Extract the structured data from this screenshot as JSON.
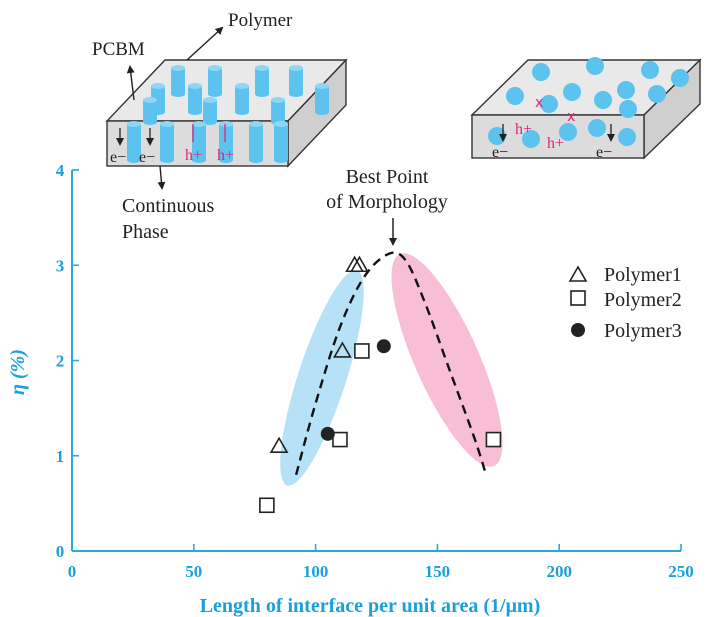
{
  "chart_data": {
    "type": "scatter",
    "xlabel": "Length of interface per unit area (1/μm)",
    "ylabel": "η (%)",
    "xlim": [
      0,
      250
    ],
    "ylim": [
      0,
      4
    ],
    "x_ticks": [
      "0",
      "50",
      "100",
      "150",
      "200",
      "250"
    ],
    "y_ticks": [
      "0",
      "1",
      "2",
      "3",
      "4"
    ],
    "grid": false,
    "legend_position": "right",
    "series": [
      {
        "name": "Polymer1",
        "marker": "triangle",
        "points": [
          [
            85,
            1.1
          ],
          [
            111,
            2.1
          ],
          [
            116,
            3.0
          ],
          [
            118,
            3.0
          ]
        ]
      },
      {
        "name": "Polymer2",
        "marker": "square",
        "points": [
          [
            80,
            0.48
          ],
          [
            110,
            1.17
          ],
          [
            119,
            2.1
          ],
          [
            173,
            1.17
          ]
        ]
      },
      {
        "name": "Polymer3",
        "marker": "circle",
        "points": [
          [
            105,
            1.23
          ],
          [
            128,
            2.15
          ]
        ]
      }
    ],
    "fit_curve": [
      [
        92,
        0.8
      ],
      [
        100,
        1.55
      ],
      [
        110,
        2.35
      ],
      [
        120,
        2.88
      ],
      [
        130,
        3.12
      ],
      [
        137,
        3.05
      ],
      [
        145,
        2.6
      ],
      [
        155,
        1.9
      ],
      [
        165,
        1.2
      ],
      [
        170,
        0.8
      ]
    ],
    "annotations": {
      "best_point": [
        "Best Point",
        "of Morphology"
      ],
      "continuous": [
        "Continuous",
        "Phase"
      ],
      "pcbm": "PCBM",
      "polymer": "Polymer",
      "electron": "e−",
      "hole": "h+",
      "blocked": "x"
    },
    "colors": {
      "axis": "#29a9e0",
      "axis_label": "#1aa0dc",
      "blue_region": "#a9dcf6",
      "pink_region": "#f7b3cf",
      "cylinder": "#5cc3ef",
      "hole": "#e8207a",
      "marker": "#222222"
    }
  }
}
